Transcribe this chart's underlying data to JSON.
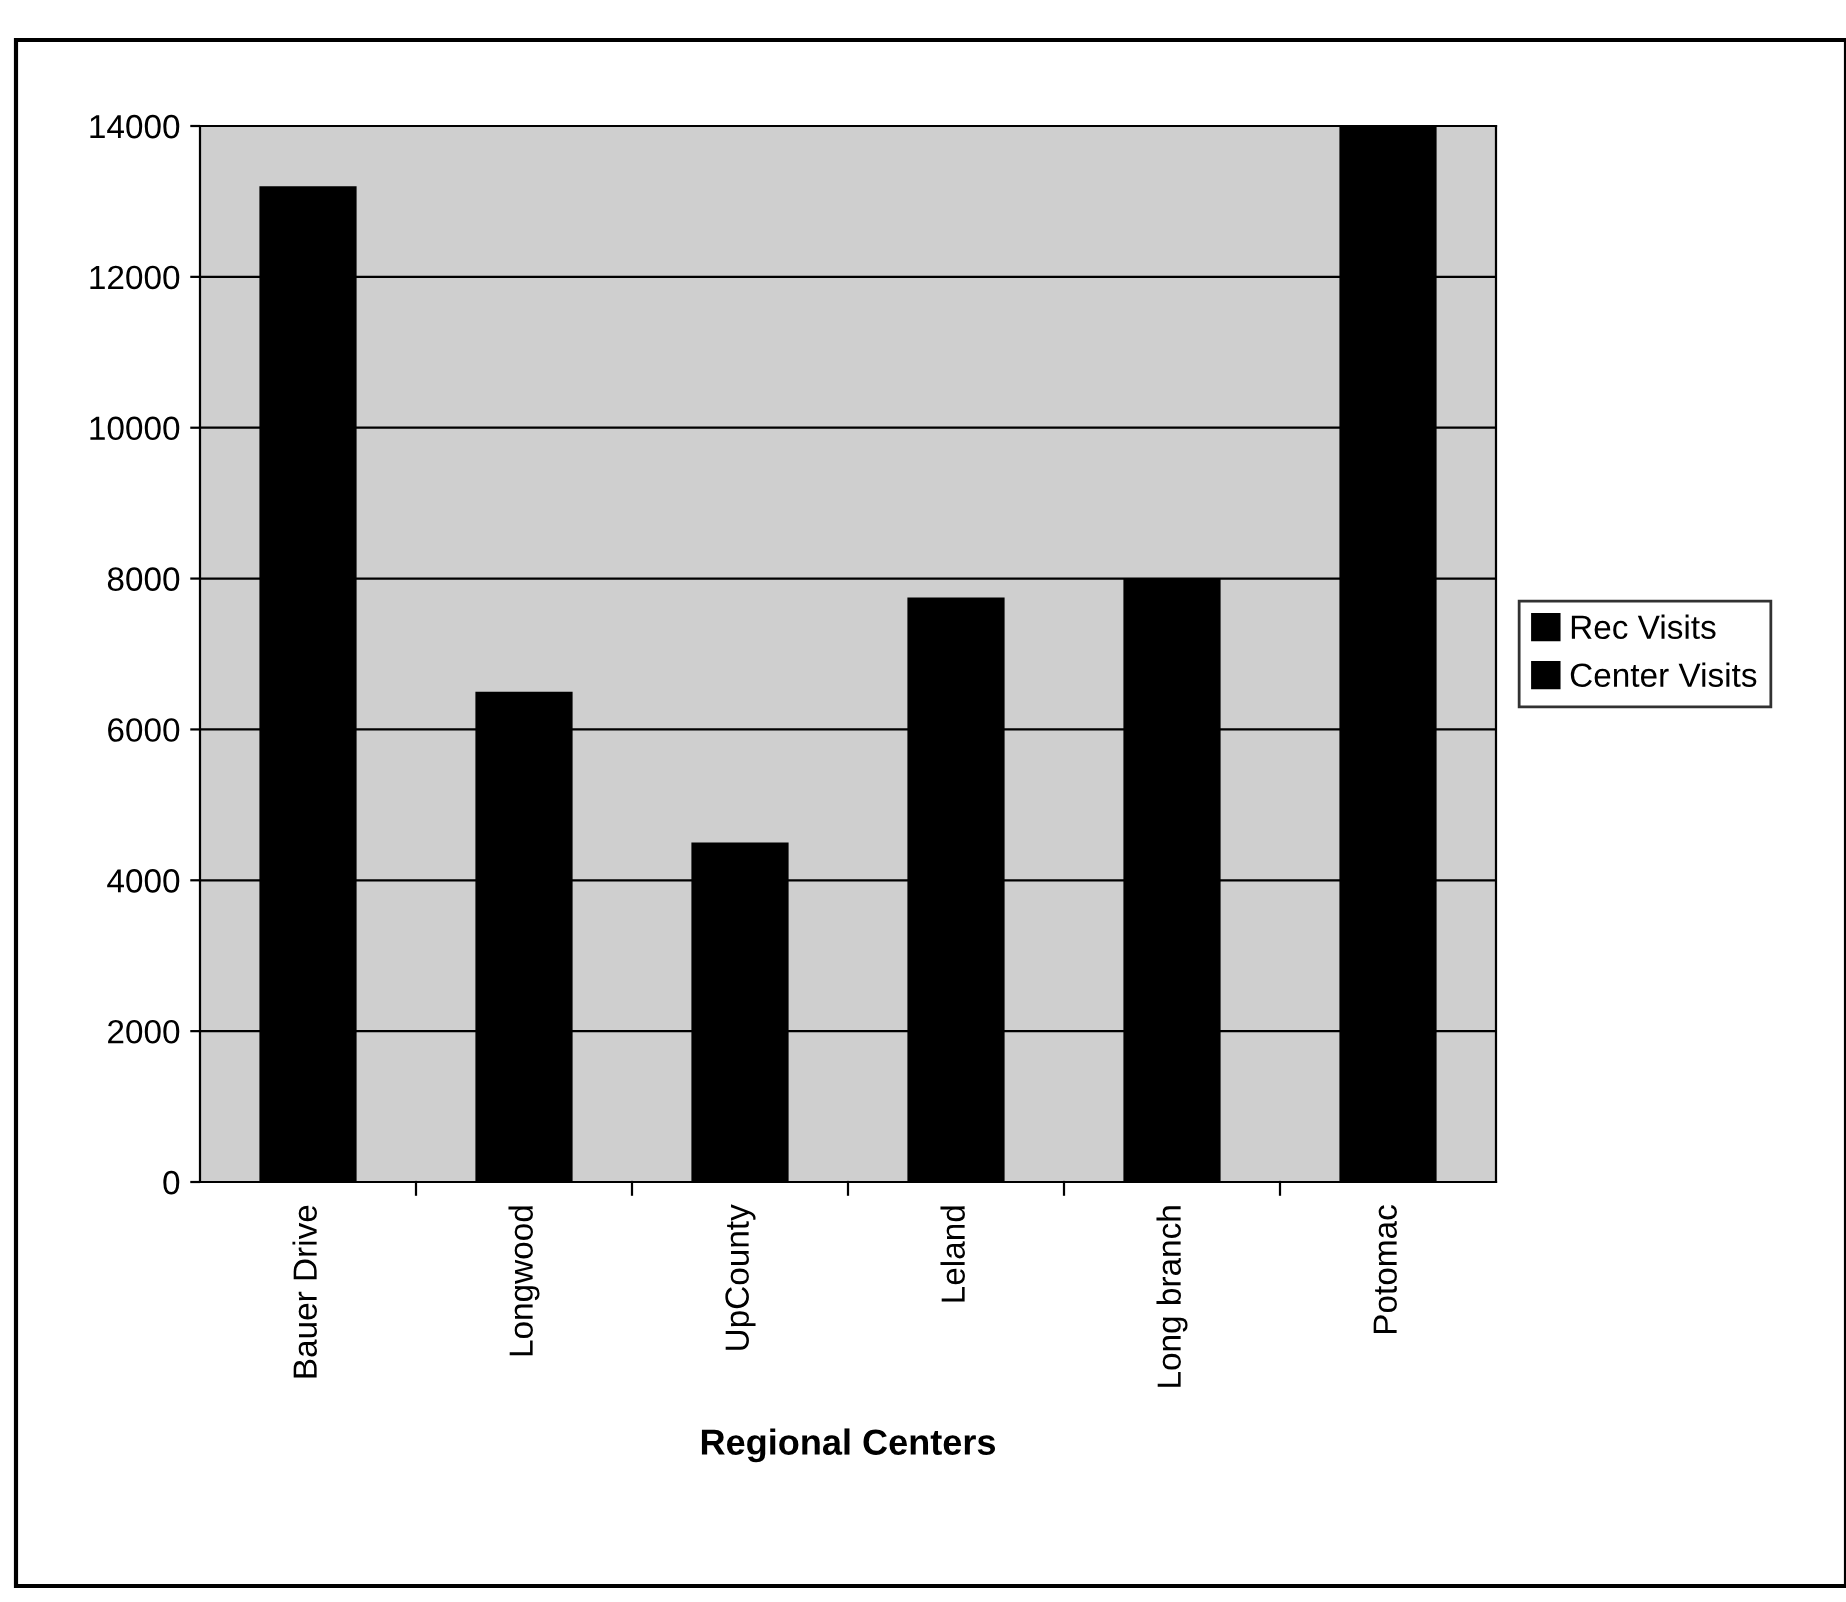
{
  "chart_data": {
    "type": "bar",
    "stacked": true,
    "xlabel": "Regional Centers",
    "categories": [
      "Bauer Drive",
      "Longwood",
      "UpCounty",
      "Leland",
      "Long branch",
      "Potomac"
    ],
    "series": [
      {
        "name": "Rec Visits",
        "color": "#000000",
        "values": [
          13200,
          6500,
          4500,
          7750,
          8000,
          14000
        ]
      },
      {
        "name": "Center Visits",
        "color": "#000000",
        "values": [
          null,
          null,
          null,
          null,
          null,
          null
        ]
      }
    ],
    "ylim": [
      0,
      14000
    ],
    "yticks": [
      0,
      2000,
      4000,
      6000,
      8000,
      10000,
      12000,
      14000
    ],
    "grid": "y",
    "legend": "right"
  }
}
